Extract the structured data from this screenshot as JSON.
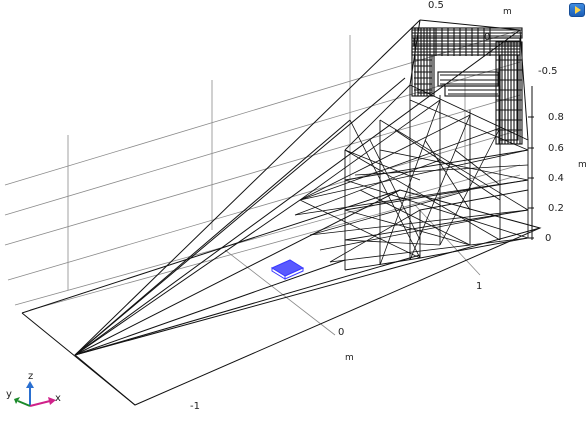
{
  "view_button": {
    "icon": "view-toggle-icon",
    "accent": "#1c5fb6"
  },
  "axes": {
    "x_ticks": [
      {
        "label": "0"
      },
      {
        "label": "-1"
      },
      {
        "label": "1"
      }
    ],
    "x_unit": "m",
    "y_ticks": [
      {
        "label": "0.5"
      },
      {
        "label": "0"
      },
      {
        "label": "-0.5"
      }
    ],
    "y_unit": "m",
    "z_ticks": [
      {
        "label": "0.8"
      },
      {
        "label": "0.6"
      },
      {
        "label": "0.4"
      },
      {
        "label": "0.2"
      },
      {
        "label": "0"
      }
    ],
    "z_unit": "m"
  },
  "triad": {
    "x": "x",
    "y": "y",
    "z": "z",
    "x_color": "#d0218a",
    "y_color": "#1a8a2a",
    "z_color": "#2a6fd0"
  },
  "colors": {
    "geometry": "#111111",
    "grid": "#8a8a8a",
    "selection": "#3a3aff"
  }
}
